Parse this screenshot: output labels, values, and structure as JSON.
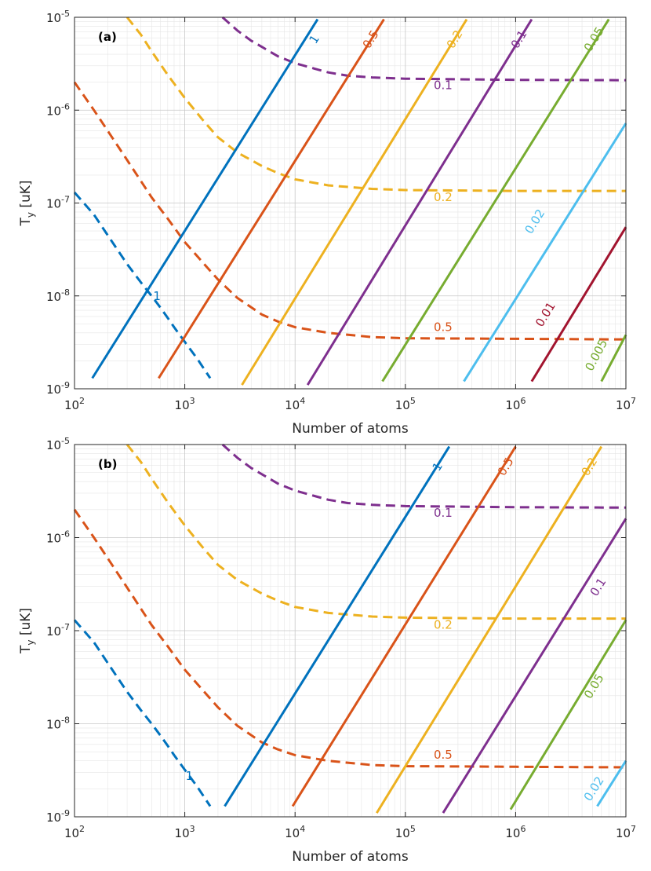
{
  "chart_data": [
    {
      "type": "line",
      "panel_label": "(a)",
      "xlabel": "Number of atoms",
      "ylabel": "T_y [uK]",
      "xscale": "log",
      "yscale": "log",
      "xlim": [
        100,
        10000000
      ],
      "ylim": [
        1e-09,
        1e-05
      ],
      "grid": true,
      "x_ticks": [
        {
          "b": "10",
          "e": "2"
        },
        {
          "b": "10",
          "e": "3"
        },
        {
          "b": "10",
          "e": "4"
        },
        {
          "b": "10",
          "e": "5"
        },
        {
          "b": "10",
          "e": "6"
        },
        {
          "b": "10",
          "e": "7"
        }
      ],
      "y_ticks": [
        {
          "b": "10",
          "e": "-9"
        },
        {
          "b": "10",
          "e": "-8"
        },
        {
          "b": "10",
          "e": "-7"
        },
        {
          "b": "10",
          "e": "-6"
        },
        {
          "b": "10",
          "e": "-5"
        }
      ],
      "solid_series": [
        {
          "label": "1",
          "color": "#0072BD",
          "x": [
            145,
            16000
          ],
          "y": [
            1.3e-09,
            9.5e-06
          ],
          "label_at": [
            16000,
            5.5e-06
          ]
        },
        {
          "label": "0.5",
          "color": "#D95319",
          "x": [
            580,
            64000
          ],
          "y": [
            1.3e-09,
            9.5e-06
          ],
          "label_at": [
            52000,
            5.5e-06
          ]
        },
        {
          "label": "0.2",
          "color": "#EDB120",
          "x": [
            3300,
            360000
          ],
          "y": [
            1.1e-09,
            9.5e-06
          ],
          "label_at": [
            300000,
            5.5e-06
          ]
        },
        {
          "label": "0.1",
          "color": "#7E2F8E",
          "x": [
            13000,
            1400000
          ],
          "y": [
            1.1e-09,
            9.5e-06
          ],
          "label_at": [
            1150000,
            5.5e-06
          ]
        },
        {
          "label": "0.05",
          "color": "#77AC30",
          "x": [
            62000,
            7000000
          ],
          "y": [
            1.2e-09,
            9.5e-06
          ],
          "label_at": [
            5500000,
            5.5e-06
          ]
        },
        {
          "label": "0.02",
          "color": "#4DBEEE",
          "x": [
            340000,
            10000000
          ],
          "y": [
            1.2e-09,
            7.2e-07
          ],
          "label_at": [
            1600000,
            6e-08
          ]
        },
        {
          "label": "0.01",
          "color": "#A2142F",
          "x": [
            1400000,
            10000000
          ],
          "y": [
            1.2e-09,
            5.5e-08
          ],
          "label_at": [
            2000000,
            6e-09
          ]
        },
        {
          "label": "0.005",
          "color": "#77AC30",
          "x": [
            6000000,
            10000000
          ],
          "y": [
            1.2e-09,
            3.8e-09
          ],
          "label_at": [
            5800000,
            2.2e-09
          ]
        }
      ],
      "dashed_series": [
        {
          "label": "1",
          "color": "#0072BD",
          "x": [
            100,
            150,
            200,
            300,
            400,
            500,
            600,
            700,
            800,
            1000,
            1300,
            1700
          ],
          "y": [
            1.3e-07,
            7.5e-08,
            4.5e-08,
            2.2e-08,
            1.4e-08,
            1e-08,
            7.5e-09,
            5.8e-09,
            4.6e-09,
            3.2e-09,
            2.1e-09,
            1.3e-09
          ],
          "label_at": [
            560,
            9e-09
          ]
        },
        {
          "label": "0.5",
          "color": "#D95319",
          "x": [
            100,
            150,
            200,
            300,
            500,
            700,
            1000,
            1500,
            2000,
            3000,
            5000,
            7000,
            10000,
            20000,
            50000,
            100000,
            1000000,
            10000000
          ],
          "y": [
            2e-06,
            1e-06,
            6e-07,
            2.9e-07,
            1.15e-07,
            6.8e-08,
            3.8e-08,
            2.2e-08,
            1.5e-08,
            9.5e-09,
            6.3e-09,
            5.3e-09,
            4.6e-09,
            4e-09,
            3.6e-09,
            3.5e-09,
            3.45e-09,
            3.4e-09
          ],
          "label_at": [
            220000,
            4.2e-09
          ]
        },
        {
          "label": "0.2",
          "color": "#EDB120",
          "x": [
            300,
            400,
            500,
            700,
            1000,
            1500,
            2000,
            3000,
            5000,
            7000,
            10000,
            20000,
            50000,
            100000,
            1000000,
            10000000
          ],
          "y": [
            1e-05,
            6.5e-06,
            4.3e-06,
            2.4e-06,
            1.35e-06,
            7.5e-07,
            5.1e-07,
            3.5e-07,
            2.5e-07,
            2.1e-07,
            1.8e-07,
            1.55e-07,
            1.42e-07,
            1.38e-07,
            1.35e-07,
            1.35e-07
          ],
          "label_at": [
            220000,
            1.05e-07
          ]
        },
        {
          "label": "0.1",
          "color": "#7E2F8E",
          "x": [
            2200,
            3000,
            4000,
            5000,
            7000,
            10000,
            15000,
            20000,
            30000,
            50000,
            100000,
            1000000,
            10000000
          ],
          "y": [
            1e-05,
            7.2e-06,
            5.6e-06,
            4.8e-06,
            3.8e-06,
            3.2e-06,
            2.8e-06,
            2.55e-06,
            2.35e-06,
            2.25e-06,
            2.18e-06,
            2.12e-06,
            2.1e-06
          ],
          "label_at": [
            220000,
            1.68e-06
          ]
        }
      ]
    },
    {
      "type": "line",
      "panel_label": "(b)",
      "xlabel": "Number of atoms",
      "ylabel": "T_y [uK]",
      "xscale": "log",
      "yscale": "log",
      "xlim": [
        100,
        10000000
      ],
      "ylim": [
        1e-09,
        1e-05
      ],
      "grid": true,
      "x_ticks": [
        {
          "b": "10",
          "e": "2"
        },
        {
          "b": "10",
          "e": "3"
        },
        {
          "b": "10",
          "e": "4"
        },
        {
          "b": "10",
          "e": "5"
        },
        {
          "b": "10",
          "e": "6"
        },
        {
          "b": "10",
          "e": "7"
        }
      ],
      "y_ticks": [
        {
          "b": "10",
          "e": "-9"
        },
        {
          "b": "10",
          "e": "-8"
        },
        {
          "b": "10",
          "e": "-7"
        },
        {
          "b": "10",
          "e": "-6"
        },
        {
          "b": "10",
          "e": "-5"
        }
      ],
      "solid_series": [
        {
          "label": "1",
          "color": "#0072BD",
          "x": [
            2300,
            250000
          ],
          "y": [
            1.3e-09,
            9.5e-06
          ],
          "label_at": [
            210000,
            5.5e-06
          ]
        },
        {
          "label": "0.5",
          "color": "#D95319",
          "x": [
            9500,
            1000000
          ],
          "y": [
            1.3e-09,
            9.5e-06
          ],
          "label_at": [
            870000,
            5.5e-06
          ]
        },
        {
          "label": "0.2",
          "color": "#EDB120",
          "x": [
            55000,
            6000000
          ],
          "y": [
            1.1e-09,
            9.5e-06
          ],
          "label_at": [
            5000000,
            5.5e-06
          ]
        },
        {
          "label": "0.1",
          "color": "#7E2F8E",
          "x": [
            220000,
            10000000
          ],
          "y": [
            1.1e-09,
            1.6e-06
          ],
          "label_at": [
            6000000,
            2.8e-07
          ]
        },
        {
          "label": "0.05",
          "color": "#77AC30",
          "x": [
            900000,
            10000000
          ],
          "y": [
            1.2e-09,
            1.3e-07
          ],
          "label_at": [
            5500000,
            2.4e-08
          ]
        },
        {
          "label": "0.02",
          "color": "#4DBEEE",
          "x": [
            5500000,
            10000000
          ],
          "y": [
            1.3e-09,
            4e-09
          ],
          "label_at": [
            5500000,
            1.9e-09
          ]
        }
      ],
      "dashed_series": [
        {
          "label": "1",
          "color": "#0072BD",
          "x": [
            100,
            150,
            200,
            300,
            400,
            500,
            600,
            700,
            800,
            1000,
            1300,
            1700
          ],
          "y": [
            1.3e-07,
            7.5e-08,
            4.5e-08,
            2.2e-08,
            1.4e-08,
            1e-08,
            7.5e-09,
            5.8e-09,
            4.6e-09,
            3.2e-09,
            2.1e-09,
            1.3e-09
          ],
          "label_at": [
            1100,
            2.5e-09
          ]
        },
        {
          "label": "0.5",
          "color": "#D95319",
          "x": [
            100,
            150,
            200,
            300,
            500,
            700,
            1000,
            1500,
            2000,
            3000,
            5000,
            7000,
            10000,
            20000,
            50000,
            100000,
            1000000,
            10000000
          ],
          "y": [
            2e-06,
            1e-06,
            6e-07,
            2.9e-07,
            1.15e-07,
            6.8e-08,
            3.8e-08,
            2.2e-08,
            1.5e-08,
            9.5e-09,
            6.3e-09,
            5.3e-09,
            4.6e-09,
            4e-09,
            3.6e-09,
            3.5e-09,
            3.45e-09,
            3.4e-09
          ],
          "label_at": [
            220000,
            4.2e-09
          ]
        },
        {
          "label": "0.2",
          "color": "#EDB120",
          "x": [
            300,
            400,
            500,
            700,
            1000,
            1500,
            2000,
            3000,
            5000,
            7000,
            10000,
            20000,
            50000,
            100000,
            1000000,
            10000000
          ],
          "y": [
            1e-05,
            6.5e-06,
            4.3e-06,
            2.4e-06,
            1.35e-06,
            7.5e-07,
            5.1e-07,
            3.5e-07,
            2.5e-07,
            2.1e-07,
            1.8e-07,
            1.55e-07,
            1.42e-07,
            1.38e-07,
            1.35e-07,
            1.35e-07
          ],
          "label_at": [
            220000,
            1.05e-07
          ]
        },
        {
          "label": "0.1",
          "color": "#7E2F8E",
          "x": [
            2200,
            3000,
            4000,
            5000,
            7000,
            10000,
            15000,
            20000,
            30000,
            50000,
            100000,
            1000000,
            10000000
          ],
          "y": [
            1e-05,
            7.2e-06,
            5.6e-06,
            4.8e-06,
            3.8e-06,
            3.2e-06,
            2.8e-06,
            2.55e-06,
            2.35e-06,
            2.25e-06,
            2.18e-06,
            2.12e-06,
            2.1e-06
          ],
          "label_at": [
            220000,
            1.68e-06
          ]
        }
      ]
    }
  ]
}
